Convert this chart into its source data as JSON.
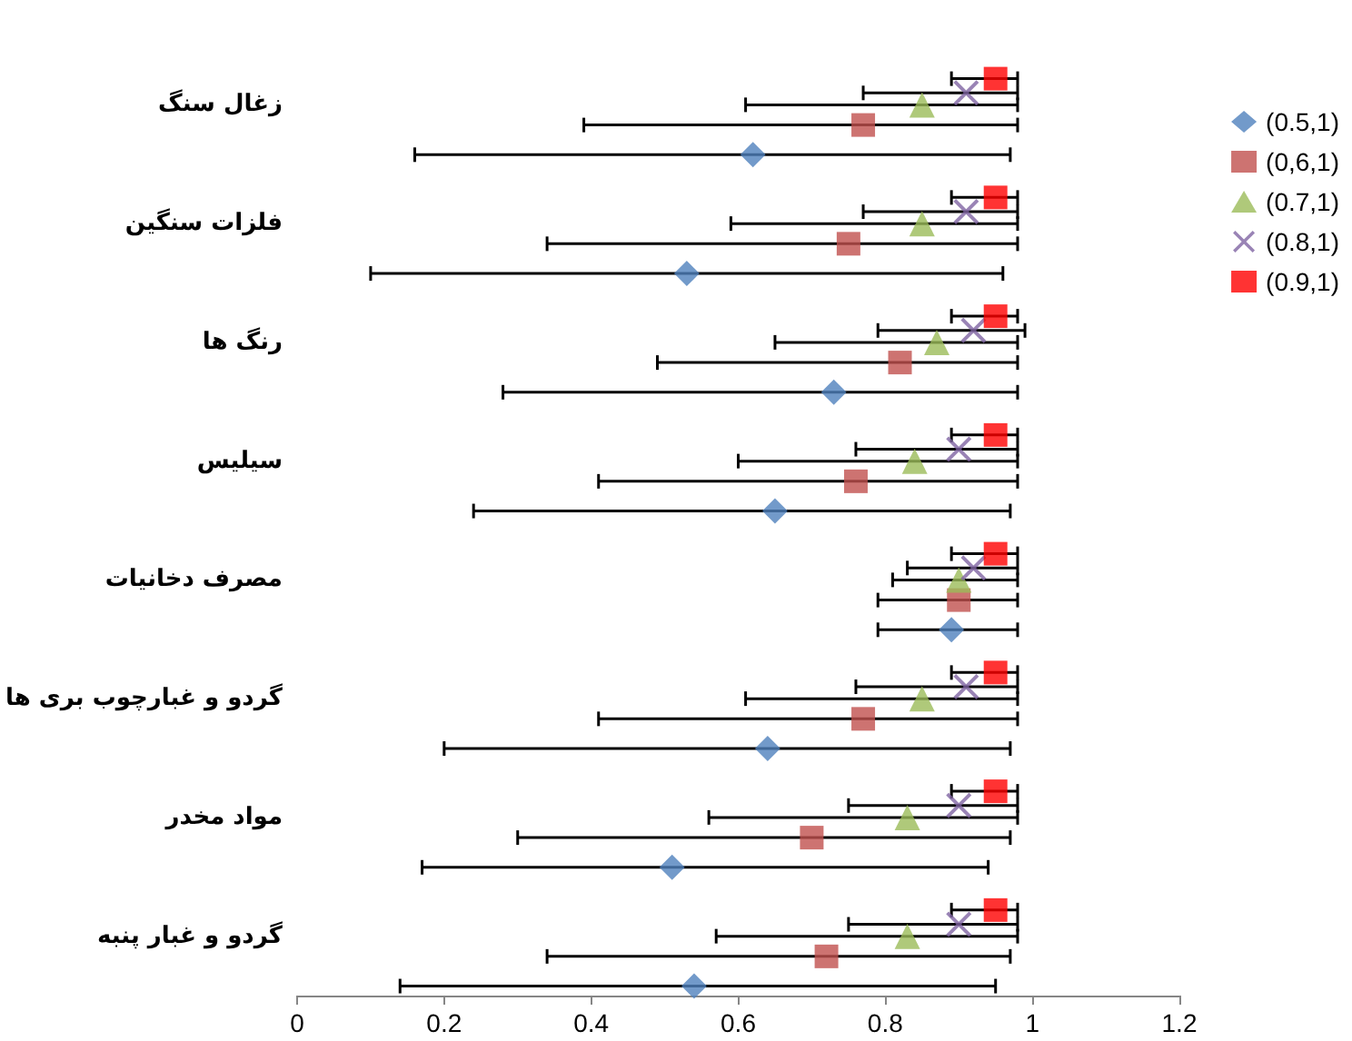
{
  "chart_data": {
    "type": "scatter",
    "orientation": "horizontal",
    "categories": [
      "زغال سنگ",
      "فلزات سنگین",
      "رنگ ها",
      "سیلیس",
      "مصرف دخانیات",
      "گردو و غبارچوب بری ها",
      "مواد مخدر",
      "گردو و غبار پنبه"
    ],
    "series": [
      {
        "name": "(0.5,1)",
        "color": "#4f81bd",
        "marker": "diamond",
        "values": [
          0.62,
          0.53,
          0.73,
          0.65,
          0.89,
          0.64,
          0.51,
          0.54
        ],
        "errors": [
          [
            0.16,
            0.97
          ],
          [
            0.1,
            0.96
          ],
          [
            0.28,
            0.98
          ],
          [
            0.24,
            0.97
          ],
          [
            0.79,
            0.98
          ],
          [
            0.2,
            0.97
          ],
          [
            0.17,
            0.94
          ],
          [
            0.14,
            0.95
          ]
        ]
      },
      {
        "name": "(0,6,1)",
        "color": "#c0504d",
        "marker": "square",
        "values": [
          0.77,
          0.75,
          0.82,
          0.76,
          0.9,
          0.77,
          0.7,
          0.72
        ],
        "errors": [
          [
            0.39,
            0.98
          ],
          [
            0.34,
            0.98
          ],
          [
            0.49,
            0.98
          ],
          [
            0.41,
            0.98
          ],
          [
            0.79,
            0.98
          ],
          [
            0.41,
            0.98
          ],
          [
            0.3,
            0.97
          ],
          [
            0.34,
            0.97
          ]
        ]
      },
      {
        "name": "(0.7,1)",
        "color": "#9bbb59",
        "marker": "triangle",
        "values": [
          0.85,
          0.85,
          0.87,
          0.84,
          0.9,
          0.85,
          0.83,
          0.83
        ],
        "errors": [
          [
            0.61,
            0.98
          ],
          [
            0.59,
            0.98
          ],
          [
            0.65,
            0.98
          ],
          [
            0.6,
            0.98
          ],
          [
            0.81,
            0.98
          ],
          [
            0.61,
            0.98
          ],
          [
            0.56,
            0.98
          ],
          [
            0.57,
            0.98
          ]
        ]
      },
      {
        "name": "(0.8,1)",
        "color": "#8064a2",
        "marker": "cross",
        "values": [
          0.91,
          0.91,
          0.92,
          0.9,
          0.92,
          0.91,
          0.9,
          0.9
        ],
        "errors": [
          [
            0.77,
            0.98
          ],
          [
            0.77,
            0.98
          ],
          [
            0.79,
            0.99
          ],
          [
            0.76,
            0.98
          ],
          [
            0.83,
            0.98
          ],
          [
            0.76,
            0.98
          ],
          [
            0.75,
            0.98
          ],
          [
            0.75,
            0.98
          ]
        ]
      },
      {
        "name": "(0.9,1)",
        "color": "#ff0000",
        "marker": "square",
        "values": [
          0.95,
          0.95,
          0.95,
          0.95,
          0.95,
          0.95,
          0.95,
          0.95
        ],
        "errors": [
          [
            0.89,
            0.98
          ],
          [
            0.89,
            0.98
          ],
          [
            0.89,
            0.98
          ],
          [
            0.89,
            0.98
          ],
          [
            0.89,
            0.98
          ],
          [
            0.89,
            0.98
          ],
          [
            0.89,
            0.98
          ],
          [
            0.89,
            0.98
          ]
        ]
      }
    ],
    "xlim": [
      0,
      1.2
    ],
    "xticks": [
      0,
      0.2,
      0.4,
      0.6,
      0.8,
      1,
      1.2
    ],
    "grid": false,
    "legend": "right"
  }
}
